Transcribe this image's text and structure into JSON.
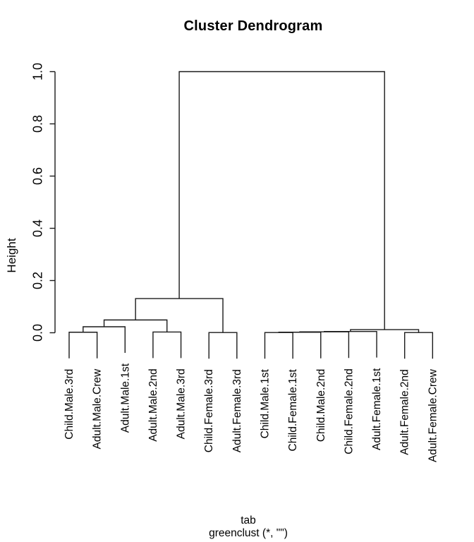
{
  "title": "Cluster Dendrogram",
  "y_axis": {
    "label": "Height",
    "ticks": [
      "0.0",
      "0.2",
      "0.4",
      "0.6",
      "0.8",
      "1.0"
    ]
  },
  "x_caption": {
    "line1": "tab",
    "line2": "greenclust (*, \"\")"
  },
  "colors": {
    "background": "#ffffff",
    "line": "#1a1a1a",
    "text": "#000000"
  },
  "chart_data": {
    "type": "dendrogram",
    "title": "Cluster Dendrogram",
    "ylabel": "Height",
    "xlabel": "tab",
    "sub": "greenclust (*, \"\")",
    "ylim": [
      0,
      1
    ],
    "y_ticks": [
      0,
      0.2,
      0.4,
      0.6,
      0.8,
      1.0
    ],
    "hang": 0.1,
    "leaves": [
      "Child.Male.3rd",
      "Adult.Male.Crew",
      "Adult.Male.1st",
      "Adult.Male.2nd",
      "Adult.Male.3rd",
      "Child.Female.3rd",
      "Adult.Female.3rd",
      "Child.Male.1st",
      "Child.Female.1st",
      "Child.Male.2nd",
      "Child.Female.2nd",
      "Adult.Female.1st",
      "Adult.Female.2nd",
      "Adult.Female.Crew"
    ],
    "merges": [
      {
        "a": "L0",
        "b": "L1",
        "h": 0.002
      },
      {
        "a": "M0",
        "b": "L2",
        "h": 0.023
      },
      {
        "a": "L3",
        "b": "L4",
        "h": 0.003
      },
      {
        "a": "M1",
        "b": "M2",
        "h": 0.049
      },
      {
        "a": "L5",
        "b": "L6",
        "h": 0.0008
      },
      {
        "a": "M3",
        "b": "M4",
        "h": 0.131
      },
      {
        "a": "L7",
        "b": "L8",
        "h": 0.0008
      },
      {
        "a": "M6",
        "b": "L9",
        "h": 0.002
      },
      {
        "a": "M7",
        "b": "L10",
        "h": 0.0035
      },
      {
        "a": "M8",
        "b": "L11",
        "h": 0.005
      },
      {
        "a": "L12",
        "b": "L13",
        "h": 0.0008
      },
      {
        "a": "M9",
        "b": "M10",
        "h": 0.012
      },
      {
        "a": "M5",
        "b": "M11",
        "h": 1.0
      }
    ]
  }
}
